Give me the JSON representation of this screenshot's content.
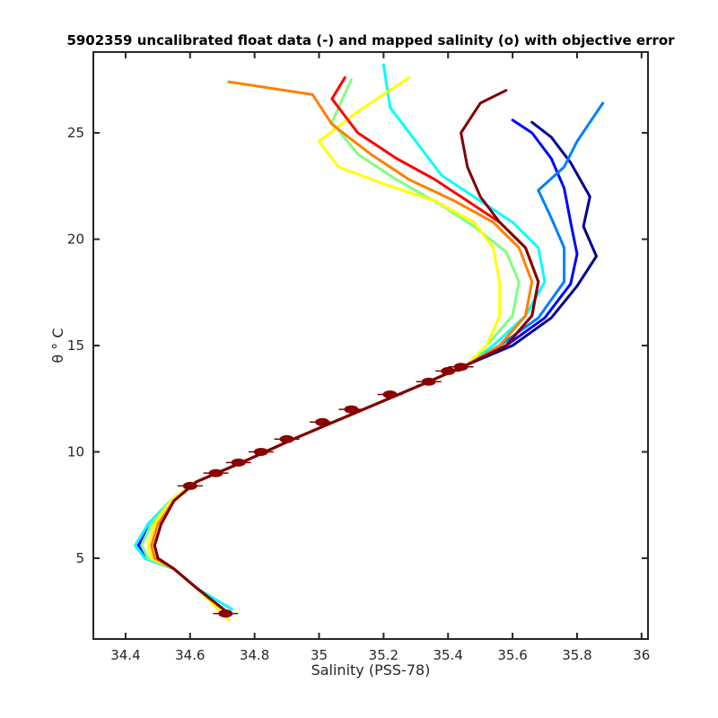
{
  "chart_data": {
    "type": "line",
    "title": "5902359 uncalibrated float data (-) and mapped salinity (o) with objective error",
    "xlabel": "Salinity (PSS-78)",
    "ylabel": "θ ° C",
    "xlim": [
      34.3,
      36.02
    ],
    "ylim": [
      1.2,
      28.8
    ],
    "xticks": [
      34.4,
      34.6,
      34.8,
      35,
      35.2,
      35.4,
      35.6,
      35.8,
      36
    ],
    "xtick_labels": [
      "34.4",
      "34.6",
      "34.8",
      "35",
      "35.2",
      "35.4",
      "35.6",
      "35.8",
      "36"
    ],
    "yticks": [
      5,
      10,
      15,
      20,
      25
    ],
    "ytick_labels": [
      "5",
      "10",
      "15",
      "20",
      "25"
    ],
    "grid": false,
    "legend": "none",
    "colormap": "jet",
    "colormap_colors": [
      "#00008f",
      "#0000ff",
      "#007fff",
      "#00ffff",
      "#7fff7f",
      "#ffff00",
      "#ff7f00",
      "#ff0000",
      "#7f0000"
    ],
    "series": [
      {
        "color": "#00008f",
        "points": [
          [
            34.72,
            2.4
          ],
          [
            34.62,
            3.6
          ],
          [
            34.55,
            4.5
          ],
          [
            34.46,
            5.0
          ],
          [
            34.44,
            5.6
          ],
          [
            34.47,
            6.6
          ],
          [
            34.54,
            7.7
          ],
          [
            34.62,
            8.6
          ],
          [
            34.76,
            9.5
          ],
          [
            34.92,
            10.6
          ],
          [
            35.06,
            11.5
          ],
          [
            35.2,
            12.4
          ],
          [
            35.34,
            13.3
          ],
          [
            35.46,
            14.1
          ],
          [
            35.6,
            15.0
          ],
          [
            35.72,
            16.3
          ],
          [
            35.8,
            17.8
          ],
          [
            35.86,
            19.2
          ],
          [
            35.82,
            20.6
          ],
          [
            35.84,
            22.0
          ],
          [
            35.78,
            23.6
          ],
          [
            35.72,
            24.8
          ],
          [
            35.66,
            25.5
          ]
        ]
      },
      {
        "color": "#0000ff",
        "points": [
          [
            34.72,
            2.4
          ],
          [
            34.62,
            3.6
          ],
          [
            34.55,
            4.5
          ],
          [
            34.46,
            5.0
          ],
          [
            34.44,
            5.6
          ],
          [
            34.47,
            6.6
          ],
          [
            34.54,
            7.7
          ],
          [
            34.62,
            8.6
          ],
          [
            34.76,
            9.5
          ],
          [
            34.92,
            10.6
          ],
          [
            35.06,
            11.5
          ],
          [
            35.2,
            12.4
          ],
          [
            35.34,
            13.3
          ],
          [
            35.46,
            14.1
          ],
          [
            35.58,
            15.0
          ],
          [
            35.7,
            16.3
          ],
          [
            35.78,
            17.9
          ],
          [
            35.8,
            19.3
          ],
          [
            35.78,
            20.8
          ],
          [
            35.76,
            22.4
          ],
          [
            35.72,
            23.8
          ],
          [
            35.66,
            25.0
          ],
          [
            35.6,
            25.6
          ]
        ]
      },
      {
        "color": "#007fff",
        "points": [
          [
            34.72,
            2.4
          ],
          [
            34.62,
            3.6
          ],
          [
            34.55,
            4.5
          ],
          [
            34.46,
            5.0
          ],
          [
            34.43,
            5.6
          ],
          [
            34.47,
            6.6
          ],
          [
            34.54,
            7.7
          ],
          [
            34.62,
            8.6
          ],
          [
            34.76,
            9.5
          ],
          [
            34.92,
            10.6
          ],
          [
            35.06,
            11.5
          ],
          [
            35.2,
            12.4
          ],
          [
            35.34,
            13.3
          ],
          [
            35.46,
            14.1
          ],
          [
            35.56,
            15.0
          ],
          [
            35.68,
            16.3
          ],
          [
            35.76,
            18.0
          ],
          [
            35.76,
            19.6
          ],
          [
            35.72,
            21.0
          ],
          [
            35.68,
            22.3
          ],
          [
            35.76,
            23.4
          ],
          [
            35.8,
            24.6
          ],
          [
            35.88,
            26.4
          ]
        ]
      },
      {
        "color": "#00ffff",
        "points": [
          [
            34.73,
            2.6
          ],
          [
            34.62,
            3.6
          ],
          [
            34.55,
            4.5
          ],
          [
            34.46,
            5.0
          ],
          [
            34.43,
            5.6
          ],
          [
            34.47,
            6.6
          ],
          [
            34.54,
            7.7
          ],
          [
            34.62,
            8.6
          ],
          [
            34.76,
            9.5
          ],
          [
            34.92,
            10.6
          ],
          [
            35.06,
            11.5
          ],
          [
            35.2,
            12.4
          ],
          [
            35.34,
            13.3
          ],
          [
            35.46,
            14.1
          ],
          [
            35.54,
            15.0
          ],
          [
            35.64,
            16.4
          ],
          [
            35.7,
            18.0
          ],
          [
            35.68,
            19.6
          ],
          [
            35.6,
            20.8
          ],
          [
            35.5,
            21.8
          ],
          [
            35.38,
            23.0
          ],
          [
            35.3,
            24.6
          ],
          [
            35.22,
            26.2
          ],
          [
            35.2,
            28.2
          ]
        ]
      },
      {
        "color": "#7fff7f",
        "points": [
          [
            34.72,
            2.4
          ],
          [
            34.62,
            3.6
          ],
          [
            34.55,
            4.5
          ],
          [
            34.47,
            5.0
          ],
          [
            34.45,
            5.6
          ],
          [
            34.48,
            6.6
          ],
          [
            34.54,
            7.7
          ],
          [
            34.62,
            8.6
          ],
          [
            34.76,
            9.5
          ],
          [
            34.92,
            10.6
          ],
          [
            35.06,
            11.5
          ],
          [
            35.2,
            12.4
          ],
          [
            35.34,
            13.3
          ],
          [
            35.46,
            14.1
          ],
          [
            35.52,
            15.0
          ],
          [
            35.6,
            16.4
          ],
          [
            35.62,
            18.0
          ],
          [
            35.58,
            19.4
          ],
          [
            35.48,
            20.6
          ],
          [
            35.38,
            21.6
          ],
          [
            35.24,
            22.8
          ],
          [
            35.12,
            24.0
          ],
          [
            35.04,
            25.5
          ],
          [
            35.1,
            27.5
          ]
        ]
      },
      {
        "color": "#ffff00",
        "points": [
          [
            34.72,
            2.1
          ],
          [
            34.62,
            3.6
          ],
          [
            34.55,
            4.5
          ],
          [
            34.48,
            5.0
          ],
          [
            34.47,
            5.6
          ],
          [
            34.49,
            6.6
          ],
          [
            34.54,
            7.7
          ],
          [
            34.62,
            8.6
          ],
          [
            34.76,
            9.5
          ],
          [
            34.92,
            10.6
          ],
          [
            35.06,
            11.5
          ],
          [
            35.2,
            12.4
          ],
          [
            35.34,
            13.3
          ],
          [
            35.46,
            14.1
          ],
          [
            35.52,
            15.0
          ],
          [
            35.56,
            16.4
          ],
          [
            35.56,
            18.0
          ],
          [
            35.54,
            19.6
          ],
          [
            35.48,
            20.8
          ],
          [
            35.36,
            21.8
          ],
          [
            35.2,
            22.6
          ],
          [
            35.06,
            23.4
          ],
          [
            35.0,
            24.6
          ],
          [
            35.12,
            26.0
          ],
          [
            35.28,
            27.6
          ]
        ]
      },
      {
        "color": "#ff7f00",
        "points": [
          [
            34.72,
            2.4
          ],
          [
            34.62,
            3.6
          ],
          [
            34.55,
            4.5
          ],
          [
            34.49,
            5.0
          ],
          [
            34.48,
            5.6
          ],
          [
            34.5,
            6.6
          ],
          [
            34.55,
            7.7
          ],
          [
            34.62,
            8.6
          ],
          [
            34.76,
            9.5
          ],
          [
            34.92,
            10.6
          ],
          [
            35.06,
            11.5
          ],
          [
            35.2,
            12.4
          ],
          [
            35.34,
            13.3
          ],
          [
            35.46,
            14.1
          ],
          [
            35.56,
            15.0
          ],
          [
            35.64,
            16.4
          ],
          [
            35.66,
            18.0
          ],
          [
            35.62,
            19.6
          ],
          [
            35.54,
            20.8
          ],
          [
            35.42,
            21.8
          ],
          [
            35.28,
            22.8
          ],
          [
            35.16,
            24.0
          ],
          [
            35.04,
            25.4
          ],
          [
            34.98,
            26.8
          ],
          [
            34.72,
            27.4
          ]
        ]
      },
      {
        "color": "#ff0000",
        "points": [
          [
            34.72,
            2.4
          ],
          [
            34.62,
            3.6
          ],
          [
            34.55,
            4.5
          ],
          [
            34.5,
            5.0
          ],
          [
            34.49,
            5.6
          ],
          [
            34.51,
            6.6
          ],
          [
            34.55,
            7.7
          ],
          [
            34.62,
            8.6
          ],
          [
            34.76,
            9.5
          ],
          [
            34.92,
            10.6
          ],
          [
            35.06,
            11.5
          ],
          [
            35.2,
            12.4
          ],
          [
            35.34,
            13.3
          ],
          [
            35.46,
            14.1
          ],
          [
            35.58,
            15.0
          ],
          [
            35.66,
            16.4
          ],
          [
            35.68,
            18.0
          ],
          [
            35.64,
            19.6
          ],
          [
            35.56,
            20.8
          ],
          [
            35.46,
            21.8
          ],
          [
            35.36,
            22.8
          ],
          [
            35.24,
            23.8
          ],
          [
            35.12,
            25.0
          ],
          [
            35.04,
            26.6
          ],
          [
            35.08,
            27.6
          ]
        ]
      },
      {
        "color": "#7f0000",
        "points": [
          [
            34.72,
            2.4
          ],
          [
            34.62,
            3.6
          ],
          [
            34.55,
            4.5
          ],
          [
            34.5,
            5.0
          ],
          [
            34.49,
            5.6
          ],
          [
            34.51,
            6.6
          ],
          [
            34.55,
            7.7
          ],
          [
            34.62,
            8.6
          ],
          [
            34.76,
            9.5
          ],
          [
            34.92,
            10.6
          ],
          [
            35.06,
            11.5
          ],
          [
            35.2,
            12.4
          ],
          [
            35.34,
            13.3
          ],
          [
            35.46,
            14.1
          ],
          [
            35.58,
            15.0
          ],
          [
            35.66,
            16.4
          ],
          [
            35.68,
            18.0
          ],
          [
            35.64,
            19.6
          ],
          [
            35.56,
            20.8
          ],
          [
            35.5,
            22.0
          ],
          [
            35.46,
            23.4
          ],
          [
            35.44,
            25.0
          ],
          [
            35.5,
            26.4
          ],
          [
            35.58,
            27.0
          ]
        ]
      }
    ],
    "mapped_salinity_markers": [
      [
        34.71,
        2.4
      ],
      [
        34.6,
        8.4
      ],
      [
        34.68,
        9.0
      ],
      [
        34.75,
        9.5
      ],
      [
        34.82,
        10.0
      ],
      [
        34.9,
        10.6
      ],
      [
        35.01,
        11.4
      ],
      [
        35.1,
        12.0
      ],
      [
        35.22,
        12.7
      ],
      [
        35.34,
        13.3
      ],
      [
        35.4,
        13.8
      ],
      [
        35.44,
        14.0
      ]
    ]
  }
}
